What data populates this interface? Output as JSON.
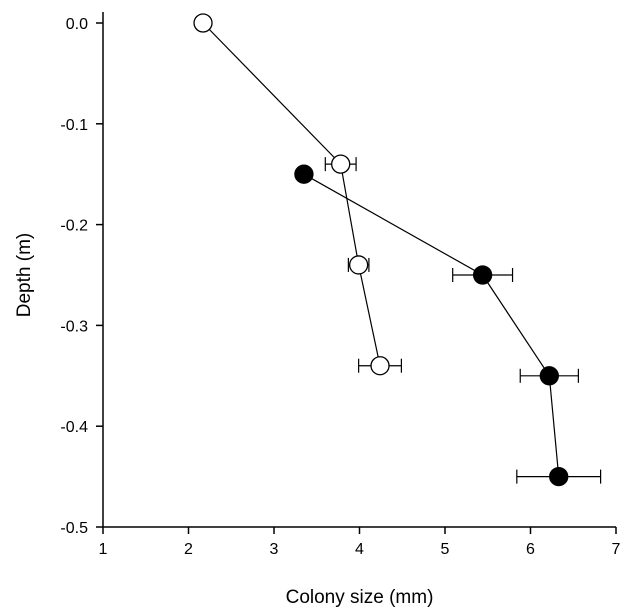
{
  "chart_data": {
    "type": "scatter",
    "xlabel": "Colony size (mm)",
    "ylabel": "Depth (m)",
    "xlim": [
      1,
      7
    ],
    "ylim": [
      -0.5,
      0.0
    ],
    "x_ticks": [
      "1",
      "2",
      "3",
      "4",
      "5",
      "6",
      "7"
    ],
    "y_ticks": [
      "0.0",
      "-0.1",
      "-0.2",
      "-0.3",
      "-0.4",
      "-0.5"
    ],
    "grid": false,
    "legend": "none",
    "series": [
      {
        "marker": "open-circle",
        "color": "#000000",
        "fill": "#ffffff",
        "points": [
          {
            "x": 2.17,
            "y": 0.0,
            "xerr": 0.0
          },
          {
            "x": 3.78,
            "y": -0.14,
            "xerr": 0.18
          },
          {
            "x": 3.99,
            "y": -0.24,
            "xerr": 0.12
          },
          {
            "x": 4.24,
            "y": -0.34,
            "xerr": 0.25
          }
        ]
      },
      {
        "marker": "filled-circle",
        "color": "#000000",
        "fill": "#000000",
        "points": [
          {
            "x": 3.35,
            "y": -0.15,
            "xerr": 0.07
          },
          {
            "x": 5.44,
            "y": -0.25,
            "xerr": 0.35
          },
          {
            "x": 6.22,
            "y": -0.35,
            "xerr": 0.34
          },
          {
            "x": 6.33,
            "y": -0.45,
            "xerr": 0.49
          }
        ]
      }
    ]
  }
}
